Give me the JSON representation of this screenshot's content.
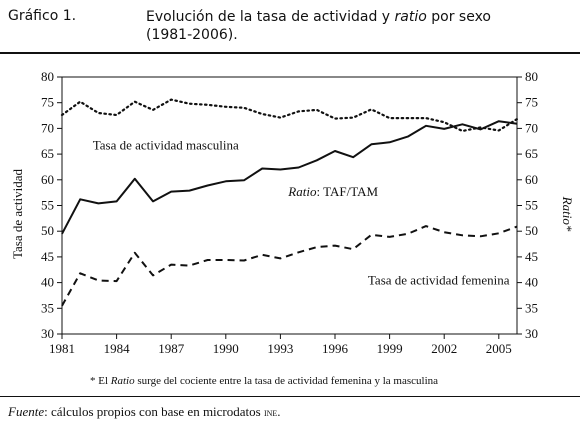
{
  "header": {
    "figure_label": "Gráfico 1.",
    "title_part1": "Evolución de la tasa de actividad y ",
    "title_italic": "ratio",
    "title_part2": " por sexo",
    "title_line2": "(1981-2006)."
  },
  "footer": {
    "source_label": "Fuente",
    "source_text": ": cálculos propios con base en microdatos ",
    "source_org": "ine",
    "source_end": "."
  },
  "chart_data": {
    "type": "line",
    "title": "",
    "xlabel": "",
    "ylabel_left": "Tasa de actividad",
    "ylabel_right": "Ratio*",
    "xlim": [
      1981,
      2006
    ],
    "ylim_left": [
      30,
      80
    ],
    "ylim_right": [
      30,
      80
    ],
    "x_ticks": [
      1981,
      1984,
      1987,
      1990,
      1993,
      1996,
      1999,
      2002,
      2005
    ],
    "y_ticks": [
      30,
      35,
      40,
      45,
      50,
      55,
      60,
      65,
      70,
      75,
      80
    ],
    "grid": false,
    "series": [
      {
        "name": "Tasa de actividad masculina",
        "style": "solid",
        "x": [
          1981,
          1982,
          1983,
          1984,
          1985,
          1986,
          1987,
          1988,
          1989,
          1990,
          1991,
          1992,
          1993,
          1994,
          1995,
          1996,
          1997,
          1998,
          1999,
          2000,
          2001,
          2002,
          2003,
          2004,
          2005,
          2006
        ],
        "y": [
          49.5,
          56.2,
          55.4,
          55.8,
          60.2,
          55.8,
          57.7,
          57.9,
          58.9,
          59.7,
          59.9,
          62.2,
          62.0,
          62.4,
          63.8,
          65.6,
          64.4,
          66.9,
          67.3,
          68.4,
          70.5,
          69.9,
          70.8,
          69.8,
          71.4,
          70.9
        ]
      },
      {
        "name": "Tasa de actividad femenina",
        "style": "dashed",
        "x": [
          1981,
          1982,
          1983,
          1984,
          1985,
          1986,
          1987,
          1988,
          1989,
          1990,
          1991,
          1992,
          1993,
          1994,
          1995,
          1996,
          1997,
          1998,
          1999,
          2000,
          2001,
          2002,
          2003,
          2004,
          2005,
          2006
        ],
        "y": [
          35.5,
          41.8,
          40.4,
          40.3,
          45.8,
          41.4,
          43.5,
          43.3,
          44.4,
          44.4,
          44.3,
          45.4,
          44.7,
          45.9,
          46.9,
          47.2,
          46.5,
          49.3,
          48.9,
          49.5,
          51.0,
          49.8,
          49.2,
          49.0,
          49.6,
          50.9
        ]
      },
      {
        "name": "Ratio: TAF/TAM",
        "style": "dotted",
        "axis": "right",
        "x": [
          1981,
          1982,
          1983,
          1984,
          1985,
          1986,
          1987,
          1988,
          1989,
          1990,
          1991,
          1992,
          1993,
          1994,
          1995,
          1996,
          1997,
          1998,
          1999,
          2000,
          2001,
          2002,
          2003,
          2004,
          2005,
          2006
        ],
        "y": [
          72.6,
          75.2,
          73.0,
          72.6,
          75.2,
          73.6,
          75.6,
          74.8,
          74.6,
          74.2,
          74.0,
          72.8,
          72.1,
          73.3,
          73.6,
          71.9,
          72.1,
          73.7,
          72.0,
          72.0,
          72.0,
          71.2,
          69.5,
          70.2,
          69.6,
          71.8
        ]
      }
    ],
    "annotations": [
      {
        "text": "Tasa de actividad masculina",
        "x": 1986.7,
        "y": 65.9
      },
      {
        "text_italic": "Ratio",
        "text": ": TAF/TAM",
        "x": 1995.9,
        "y": 56.8
      },
      {
        "text": "Tasa de actividad femenina",
        "x": 2001.7,
        "y": 39.6
      }
    ],
    "footnote_pre": "* El ",
    "footnote_italic": "Ratio",
    "footnote_post": " surge del cociente entre la tasa de actividad femenina y la masculina"
  }
}
